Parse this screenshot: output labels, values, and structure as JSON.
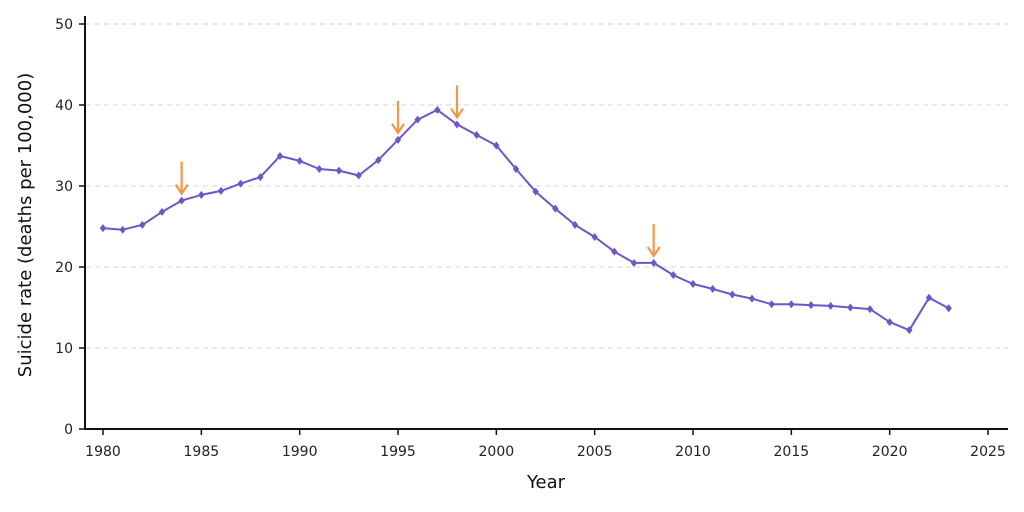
{
  "chart_data": {
    "type": "line",
    "title": "",
    "xlabel": "Year",
    "ylabel": "Suicide rate (deaths per 100,000)",
    "xlim": [
      1979,
      2026
    ],
    "ylim": [
      0,
      50
    ],
    "xticks": [
      1980,
      1985,
      1990,
      1995,
      2000,
      2005,
      2010,
      2015,
      2020,
      2025
    ],
    "yticks": [
      0,
      10,
      20,
      30,
      40,
      50
    ],
    "grid": "horizontal dashed",
    "legend": "none",
    "series": [
      {
        "color": "#6f55c8",
        "marker": "diamond",
        "x": [
          1980,
          1981,
          1982,
          1983,
          1984,
          1985,
          1986,
          1987,
          1988,
          1989,
          1990,
          1991,
          1992,
          1993,
          1994,
          1995,
          1996,
          1997,
          1998,
          1999,
          2000,
          2001,
          2002,
          2003,
          2004,
          2005,
          2006,
          2007,
          2008,
          2009,
          2010,
          2011,
          2012,
          2013,
          2014,
          2015,
          2016,
          2017,
          2018,
          2019,
          2020,
          2021,
          2022,
          2023
        ],
        "values": [
          24.8,
          24.6,
          25.2,
          26.8,
          28.2,
          28.9,
          29.4,
          30.3,
          31.1,
          33.7,
          33.1,
          32.1,
          31.9,
          31.3,
          33.2,
          35.7,
          38.2,
          39.4,
          37.6,
          36.3,
          35.0,
          32.1,
          29.3,
          27.2,
          25.2,
          23.7,
          21.9,
          20.5,
          20.5,
          19.0,
          17.9,
          17.3,
          16.6,
          16.1,
          15.4,
          15.4,
          15.3,
          15.2,
          15.0,
          14.8,
          13.2,
          12.2,
          16.2,
          14.9
        ]
      }
    ],
    "annotations": [
      {
        "type": "arrow",
        "x": 1984,
        "color": "#f0994a"
      },
      {
        "type": "arrow",
        "x": 1995,
        "color": "#f0994a"
      },
      {
        "type": "arrow",
        "x": 1998,
        "color": "#f0994a"
      },
      {
        "type": "arrow",
        "x": 2008,
        "color": "#f0994a"
      }
    ]
  }
}
